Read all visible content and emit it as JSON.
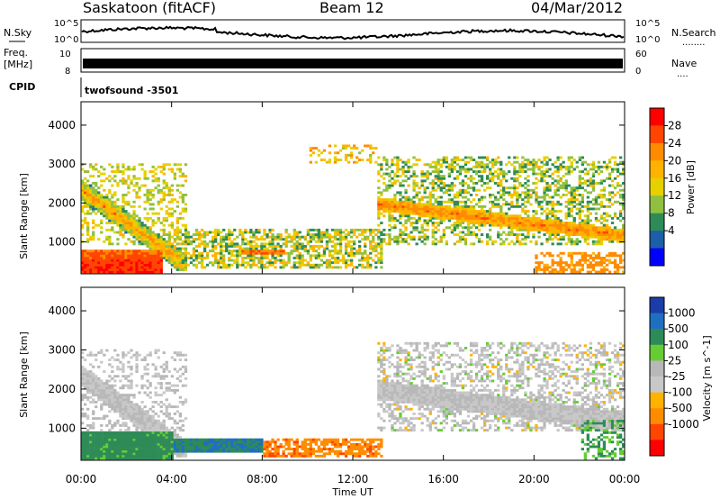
{
  "header": {
    "station": "Saskatoon (fitACF)",
    "beam": "Beam 12",
    "date": "04/Mar/2012"
  },
  "noise_panel": {
    "left_label": "N.Sky",
    "right_label": "N.Search",
    "axis_top": "10^5",
    "axis_bottom": "10^0",
    "dots": "........"
  },
  "freq_panel": {
    "left_label_1": "Freq.",
    "left_label_2": "[MHz]",
    "left_top": "10",
    "left_bottom": "8",
    "right_label": "Nave",
    "right_top": "60",
    "right_bottom": "0",
    "dots": "...."
  },
  "cpid": {
    "label": "CPID",
    "value": "twofsound  -3501"
  },
  "power_panel": {
    "ylabel": "Slant Range [km]",
    "colorbar_label": "Power [dB]",
    "colorbar_ticks": [
      "28",
      "24",
      "20",
      "16",
      "12",
      "8",
      "4"
    ],
    "colorbar_colors": [
      "#ff0000",
      "#ff4500",
      "#ff8c00",
      "#ffb300",
      "#e6d000",
      "#90c040",
      "#2e8b57",
      "#1c5fa8",
      "#0000ff"
    ]
  },
  "velocity_panel": {
    "ylabel": "Slant Range [km]",
    "colorbar_label": "Velocity [m s^-1]",
    "colorbar_ticks": [
      "1000",
      "500",
      "100",
      "25",
      "-25",
      "-100",
      "-500",
      "-1000"
    ],
    "colorbar_colors": [
      "#1c3ca8",
      "#1f6fc0",
      "#2e8b57",
      "#66cc33",
      "#b8b8b8",
      "#c8c8c8",
      "#ffb300",
      "#ff8c00",
      "#ff4500",
      "#ff0000"
    ]
  },
  "axes": {
    "xlabel": "Time UT",
    "x_ticks": [
      "00:00",
      "04:00",
      "08:00",
      "12:00",
      "16:00",
      "20:00",
      "00:00"
    ],
    "y_ticks": [
      "1000",
      "2000",
      "3000",
      "4000"
    ]
  },
  "chart_data": [
    {
      "type": "heatmap",
      "title": "Power [dB]",
      "xlabel": "",
      "ylabel": "Slant Range [km]",
      "xlim": [
        0,
        24
      ],
      "ylim": [
        180,
        4600
      ],
      "value_range": [
        0,
        30
      ],
      "features": [
        {
          "hours": [
            0,
            4.5
          ],
          "slant_km": [
            150,
            2600
          ],
          "power_db_peak": 28
        },
        {
          "hours": [
            13,
            24
          ],
          "slant_km": [
            700,
            3300
          ],
          "power_db_peak": 24
        },
        {
          "hours": [
            4,
            13
          ],
          "slant_km": [
            200,
            1300
          ],
          "power_db_peak": 20
        }
      ]
    },
    {
      "type": "heatmap",
      "title": "Velocity [m s^-1]",
      "xlabel": "Time UT",
      "ylabel": "Slant Range [km]",
      "xlim": [
        0,
        24
      ],
      "ylim": [
        180,
        4600
      ],
      "value_range": [
        -1000,
        1000
      ],
      "features": [
        {
          "hours": [
            0,
            4
          ],
          "slant_km": [
            300,
            900
          ],
          "velocity": 100
        },
        {
          "hours": [
            4,
            8
          ],
          "slant_km": [
            350,
            650
          ],
          "velocity": 500
        },
        {
          "hours": [
            9,
            13
          ],
          "slant_km": [
            200,
            500
          ],
          "velocity": -500
        },
        {
          "hours": [
            13,
            24
          ],
          "slant_km": [
            1000,
            3200
          ],
          "velocity": 0
        }
      ]
    }
  ]
}
